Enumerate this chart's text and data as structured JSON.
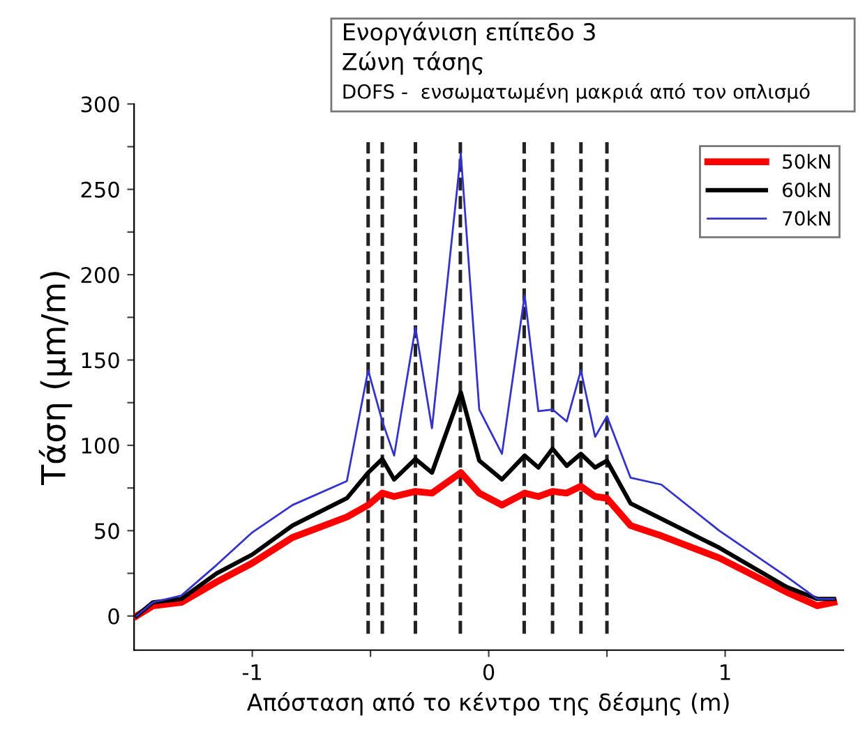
{
  "chart_data": {
    "type": "line",
    "xlabel": "Απόσταση από το κέντρο της δέσμης (m)",
    "ylabel": "Τάση (μm/m)",
    "annotations": [
      "Ενοργάνιση επίπεδο 3",
      "Ζώνη τάσης",
      "DOFS -  ενσωματωμένη μακριά από τον οπλισμό"
    ],
    "x": [
      -1.49,
      -1.42,
      -1.3,
      -1.15,
      -1.0,
      -0.83,
      -0.6,
      -0.51,
      -0.45,
      -0.4,
      -0.31,
      -0.24,
      -0.118,
      -0.04,
      0.056,
      0.152,
      0.21,
      0.27,
      0.33,
      0.39,
      0.45,
      0.5,
      0.6,
      0.73,
      0.975,
      1.26,
      1.39,
      1.46
    ],
    "series": [
      {
        "name": "50kN",
        "color": "#ff0000",
        "values": [
          0,
          6,
          8,
          20,
          31,
          46,
          58,
          65,
          72,
          70,
          73,
          72,
          84,
          72,
          65,
          72,
          70,
          73,
          72,
          76,
          70,
          69,
          53,
          47,
          34,
          14,
          6,
          8
        ]
      },
      {
        "name": "60kN",
        "color": "#000000",
        "values": [
          0,
          8,
          10,
          25,
          36,
          53,
          69,
          84,
          92,
          80,
          92,
          84,
          131,
          91,
          80,
          94,
          87,
          98,
          88,
          95,
          87,
          91,
          66,
          57,
          40,
          17,
          10,
          10
        ]
      },
      {
        "name": "70kN",
        "color": "#3333cc",
        "values": [
          0,
          8,
          12,
          30,
          49,
          65,
          79,
          144,
          114,
          94,
          169,
          110,
          271,
          121,
          95,
          188,
          120,
          121,
          114,
          144,
          105,
          117,
          81,
          77,
          50,
          23,
          10,
          10
        ]
      }
    ],
    "ref_lines": [
      {
        "axis": "x",
        "value": -0.51,
        "color": "#222222",
        "line_style": "dashed"
      },
      {
        "axis": "x",
        "value": -0.45,
        "color": "#222222",
        "line_style": "dashed"
      },
      {
        "axis": "x",
        "value": -0.31,
        "color": "#222222",
        "line_style": "dashed"
      },
      {
        "axis": "x",
        "value": -0.12,
        "color": "#222222",
        "line_style": "dashed"
      },
      {
        "axis": "x",
        "value": 0.15,
        "color": "#222222",
        "line_style": "dashed"
      },
      {
        "axis": "x",
        "value": 0.27,
        "color": "#222222",
        "line_style": "dashed"
      },
      {
        "axis": "x",
        "value": 0.39,
        "color": "#222222",
        "line_style": "dashed"
      },
      {
        "axis": "x",
        "value": 0.5,
        "color": "#222222",
        "line_style": "dashed"
      }
    ],
    "xlim": [
      -1.5,
      1.5
    ],
    "xticks": [
      -1,
      {
        "value": -0.5,
        "label": null
      },
      0,
      {
        "value": 0.5,
        "label": null
      },
      1
    ],
    "ylim": [
      -20,
      300
    ],
    "yticks": [
      0,
      {
        "value": 25,
        "label": null
      },
      50,
      {
        "value": 75,
        "label": null
      },
      100,
      {
        "value": 125,
        "label": null
      },
      150,
      {
        "value": 175,
        "label": null
      },
      200,
      {
        "value": 225,
        "label": null
      },
      250,
      {
        "value": 275,
        "label": null
      },
      300
    ],
    "grid": false,
    "legend": "top right",
    "marker": "none",
    "line_style": "solid"
  }
}
